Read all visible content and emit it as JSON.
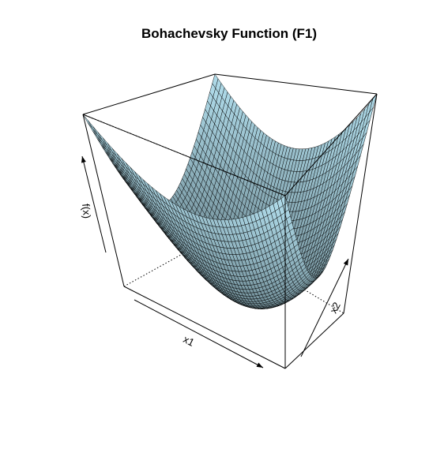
{
  "chart_data": {
    "type": "surface",
    "title": "Bohachevsky Function (F1)",
    "xlabel": "x1",
    "ylabel": "x2",
    "zlabel": "f(x)",
    "function": "x1^2 + 2*x2^2 - 0.3*cos(3*pi*x1) - 0.4*cos(4*pi*x2) + 0.7",
    "xlim": [
      -100,
      100
    ],
    "ylim": [
      -100,
      100
    ],
    "zlim": [
      0,
      30000
    ],
    "grid_n": 50,
    "surface_color": "#add8e6",
    "mesh_color": "#000000",
    "box": true,
    "ticks": false,
    "view": {
      "theta": 30,
      "phi": 30
    }
  }
}
